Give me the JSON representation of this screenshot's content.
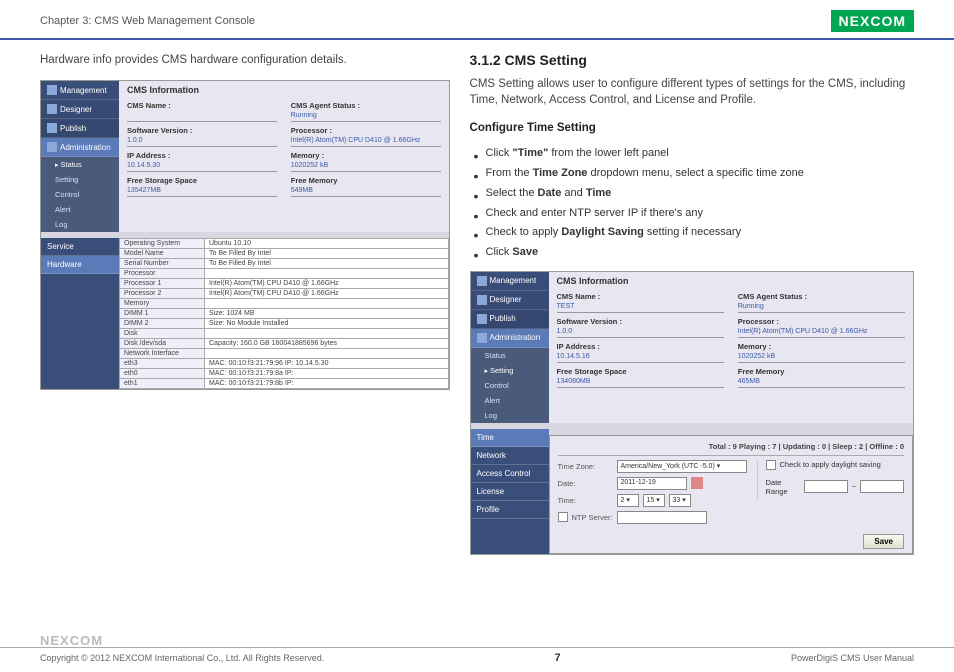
{
  "header": {
    "chapter": "Chapter 3: CMS Web Management Console",
    "logo": "NEXCOM"
  },
  "left": {
    "intro": "Hardware info provides CMS hardware configuration details.",
    "screenshot1": {
      "sidebar": [
        {
          "label": "Management",
          "icon": true
        },
        {
          "label": "Designer",
          "icon": true
        },
        {
          "label": "Publish",
          "icon": true
        },
        {
          "label": "Administration",
          "icon": true,
          "active": true
        }
      ],
      "sidebarSub": [
        {
          "label": "Status",
          "hl": true
        },
        {
          "label": "Setting"
        },
        {
          "label": "Control"
        },
        {
          "label": "Alert"
        },
        {
          "label": "Log"
        }
      ],
      "panelTitle": "CMS Information",
      "info": [
        {
          "l": "CMS Name :",
          "v": ""
        },
        {
          "l": "CMS Agent Status :",
          "v": "Running"
        },
        {
          "l": "Software Version :",
          "v": "1.0.0"
        },
        {
          "l": "Processor :",
          "v": "Intel(R) Atom(TM) CPU D410 @ 1.66GHz"
        },
        {
          "l": "IP Address :",
          "v": "10.14.5.30"
        },
        {
          "l": "Memory :",
          "v": "1020252 kB"
        },
        {
          "l": "Free Storage Space",
          "v": "135427MB"
        },
        {
          "l": "Free Memory",
          "v": "549MB"
        }
      ],
      "hwSidebar": [
        {
          "label": "Service"
        },
        {
          "label": "Hardware",
          "sel": true
        }
      ],
      "hwRows": [
        [
          "Operating System",
          "Ubuntu 10.10"
        ],
        [
          "Model Name",
          "To Be Filled By Intel"
        ],
        [
          "Serial Number",
          "To Be Filled By Intel"
        ],
        [
          "Processor",
          ""
        ],
        [
          "Processor 1",
          "Intel(R) Atom(TM) CPU D410 @ 1.66GHz"
        ],
        [
          "Processor 2",
          "Intel(R) Atom(TM) CPU D410 @ 1.66GHz"
        ],
        [
          "Memory",
          ""
        ],
        [
          "DIMM 1",
          "Size: 1024 MB"
        ],
        [
          "DIMM 2",
          "Size: No Module Installed"
        ],
        [
          "Disk",
          ""
        ],
        [
          "Disk /dev/sda",
          "Capacity: 160.0 GB  160041885696 bytes"
        ],
        [
          "Network Interface",
          ""
        ],
        [
          "eth3",
          "MAC: 00:10:f3:21:79:96  IP: 10.14.5.30"
        ],
        [
          "eth0",
          "MAC: 00:10:f3:21:79:8a  IP:"
        ],
        [
          "eth1",
          "MAC: 00:10:f3:21:79:8b  IP:"
        ]
      ]
    }
  },
  "right": {
    "title": "3.1.2 CMS Setting",
    "intro": "CMS Setting allows user to configure different types of settings for the CMS, including Time, Network, Access Control, and License and Profile.",
    "subtitle": "Configure Time Setting",
    "bullets": [
      {
        "pre": "Click ",
        "bold": "\"Time\"",
        "post": " from the lower left panel"
      },
      {
        "pre": "From the ",
        "bold": "Time Zone",
        "post": " dropdown menu, select a specific time zone"
      },
      {
        "pre": "Select the ",
        "bold": "Date",
        "mid": " and ",
        "bold2": "Time",
        "post": ""
      },
      {
        "pre": "Check and enter NTP server IP if there's any",
        "bold": "",
        "post": ""
      },
      {
        "pre": "Check to apply ",
        "bold": "Daylight Saving",
        "post": " setting if necessary"
      },
      {
        "pre": "Click ",
        "bold": "Save",
        "post": ""
      }
    ],
    "screenshot2": {
      "sidebar": [
        {
          "label": "Management",
          "icon": true
        },
        {
          "label": "Designer",
          "icon": true
        },
        {
          "label": "Publish",
          "icon": true
        },
        {
          "label": "Administration",
          "icon": true,
          "active": true
        }
      ],
      "sidebarSub": [
        {
          "label": "Status"
        },
        {
          "label": "Setting",
          "hl": true
        },
        {
          "label": "Control"
        },
        {
          "label": "Alert"
        },
        {
          "label": "Log"
        }
      ],
      "panelTitle": "CMS Information",
      "info": [
        {
          "l": "CMS Name :",
          "v": "TEST"
        },
        {
          "l": "CMS Agent Status :",
          "v": "Running"
        },
        {
          "l": "Software Version :",
          "v": "1.0.0"
        },
        {
          "l": "Processor :",
          "v": "Intel(R) Atom(TM) CPU D410 @ 1.66GHz"
        },
        {
          "l": "IP Address :",
          "v": "10.14.5.16"
        },
        {
          "l": "Memory :",
          "v": "1020252 kB"
        },
        {
          "l": "Free Storage Space",
          "v": "134080MB"
        },
        {
          "l": "Free Memory",
          "v": "465MB"
        }
      ],
      "settingsSidebar": [
        {
          "label": "Time",
          "sel": true
        },
        {
          "label": "Network"
        },
        {
          "label": "Access Control"
        },
        {
          "label": "License"
        },
        {
          "label": "Profile"
        }
      ],
      "statusBar": "Total : 9   Playing : 7  |  Updating : 0  |  Sleep : 2  |  Offline : 0",
      "form": {
        "tzLabel": "Time Zone:",
        "tz": "America/New_York (UTC -5.0) ▾",
        "dateLabel": "Date:",
        "date": "2011-12-19",
        "timeLabel": "Time:",
        "h": "2 ▾",
        "m": "15 ▾",
        "s": "33 ▾",
        "ntpLabel": "NTP Server:",
        "daylight": "Check to apply daylight saving",
        "rangeLabel": "Date Range",
        "save": "Save"
      }
    }
  },
  "footer": {
    "logo": "NEXCOM",
    "copyright": "Copyright © 2012 NEXCOM International Co., Ltd. All Rights Reserved.",
    "page": "7",
    "manual": "PowerDigiS CMS User Manual"
  }
}
